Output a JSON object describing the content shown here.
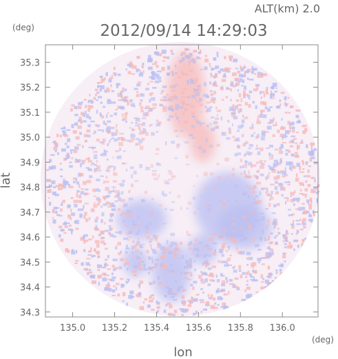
{
  "header": {
    "altitude_label": "ALT(km) 2.0",
    "timestamp": "2012/09/14 14:29:03",
    "y_unit": "(deg)",
    "x_unit": "(deg)"
  },
  "colors": {
    "axis": "#888888",
    "text": "#666666",
    "positive": "#f6b9b9",
    "negative": "#b9bff2",
    "neutral": "#f7eef6"
  },
  "chart_data": {
    "type": "heatmap",
    "title": "2012/09/14 14:29:03",
    "subtitle": "ALT(km) 2.0",
    "xlabel": "lon",
    "ylabel": "lat",
    "xlim": [
      134.87,
      136.17
    ],
    "ylim": [
      34.28,
      35.37
    ],
    "x_ticks": [
      135.0,
      135.2,
      135.4,
      135.6,
      135.8,
      136.0
    ],
    "x_tick_labels": [
      "135.0",
      "135.2",
      "135.4",
      "135.6",
      "135.8",
      "136.0"
    ],
    "y_ticks": [
      34.3,
      34.4,
      34.5,
      34.6,
      34.7,
      34.8,
      34.9,
      35.0,
      35.1,
      35.2,
      35.3
    ],
    "y_tick_labels": [
      "34.3",
      "34.4",
      "34.5",
      "34.6",
      "34.7",
      "34.8",
      "34.9",
      "35.0",
      "35.1",
      "35.2",
      "35.3"
    ],
    "domain": {
      "shape": "circle",
      "center_lon": 135.52,
      "center_lat": 34.825,
      "radius_lon": 0.65,
      "radius_lat": 0.535
    },
    "features": [
      {
        "kind": "positive",
        "lon": 135.54,
        "lat": 35.17,
        "rlon": 0.09,
        "rlat": 0.17
      },
      {
        "kind": "positive",
        "lon": 135.62,
        "lat": 34.98,
        "rlon": 0.06,
        "rlat": 0.08
      },
      {
        "kind": "negative",
        "lon": 135.74,
        "lat": 34.72,
        "rlon": 0.16,
        "rlat": 0.14
      },
      {
        "kind": "negative",
        "lon": 135.82,
        "lat": 34.64,
        "rlon": 0.13,
        "rlat": 0.09
      },
      {
        "kind": "negative",
        "lon": 135.33,
        "lat": 34.67,
        "rlon": 0.12,
        "rlat": 0.08
      },
      {
        "kind": "negative",
        "lon": 135.47,
        "lat": 34.46,
        "rlon": 0.09,
        "rlat": 0.12
      },
      {
        "kind": "negative",
        "lon": 135.3,
        "lat": 34.5,
        "rlon": 0.06,
        "rlat": 0.06
      },
      {
        "kind": "negative",
        "lon": 135.62,
        "lat": 34.55,
        "rlon": 0.07,
        "rlat": 0.06
      }
    ],
    "grid": false,
    "legend": "none"
  }
}
